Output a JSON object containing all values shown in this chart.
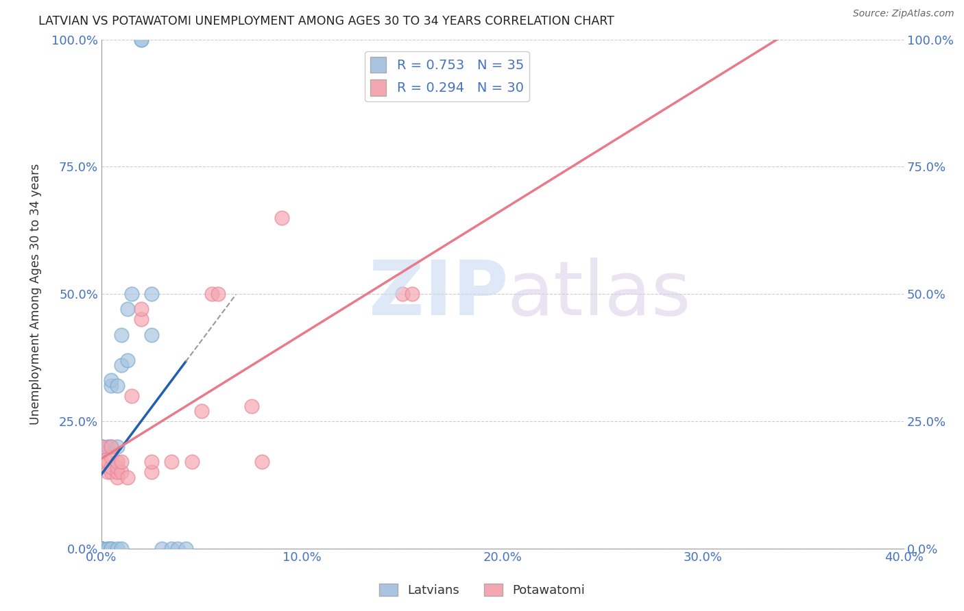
{
  "title": "LATVIAN VS POTAWATOMI UNEMPLOYMENT AMONG AGES 30 TO 34 YEARS CORRELATION CHART",
  "source": "Source: ZipAtlas.com",
  "ylabel": "Unemployment Among Ages 30 to 34 years",
  "x_tick_labels": [
    "0.0%",
    "10.0%",
    "20.0%",
    "30.0%",
    "40.0%"
  ],
  "x_tick_vals": [
    0.0,
    10.0,
    20.0,
    30.0,
    40.0
  ],
  "y_tick_labels": [
    "0.0%",
    "25.0%",
    "50.0%",
    "75.0%",
    "100.0%"
  ],
  "y_tick_vals": [
    0.0,
    25.0,
    50.0,
    75.0,
    100.0
  ],
  "xlim": [
    0.0,
    40.0
  ],
  "ylim": [
    0.0,
    100.0
  ],
  "latvian_color": "#a8c4e0",
  "latvian_edge_color": "#7aaed0",
  "potawatomi_color": "#f4a7b0",
  "potawatomi_edge_color": "#e888a0",
  "latvian_line_color": "#1f5fad",
  "potawatomi_line_color": "#e87a8a",
  "latvian_R": 0.753,
  "latvian_N": 35,
  "potawatomi_R": 0.294,
  "potawatomi_N": 30,
  "legend_label_latvian": "Latvians",
  "legend_label_potawatomi": "Potawatomi",
  "background_color": "#ffffff",
  "latvian_x": [
    0.0,
    0.0,
    0.0,
    0.0,
    0.0,
    0.0,
    0.0,
    0.0,
    0.0,
    0.0,
    0.3,
    0.3,
    0.3,
    0.5,
    0.5,
    0.5,
    0.5,
    0.5,
    0.8,
    0.8,
    0.8,
    1.0,
    1.0,
    1.0,
    1.3,
    1.3,
    1.5,
    2.0,
    2.0,
    2.5,
    2.5,
    3.0,
    3.5,
    3.8,
    4.2
  ],
  "latvian_y": [
    0.0,
    0.0,
    0.0,
    0.0,
    0.0,
    0.0,
    0.0,
    0.0,
    20.0,
    20.0,
    0.0,
    0.0,
    20.0,
    0.0,
    0.0,
    20.0,
    32.0,
    33.0,
    0.0,
    20.0,
    32.0,
    0.0,
    36.0,
    42.0,
    37.0,
    47.0,
    50.0,
    100.0,
    100.0,
    42.0,
    50.0,
    0.0,
    0.0,
    0.0,
    0.0
  ],
  "potawatomi_x": [
    0.0,
    0.0,
    0.3,
    0.3,
    0.5,
    0.5,
    0.5,
    0.5,
    0.8,
    0.8,
    0.8,
    0.8,
    1.0,
    1.0,
    1.3,
    1.5,
    2.0,
    2.0,
    2.5,
    2.5,
    3.5,
    4.5,
    5.0,
    5.5,
    5.8,
    7.5,
    8.0,
    9.0,
    15.0,
    15.5
  ],
  "potawatomi_y": [
    17.0,
    20.0,
    15.0,
    17.0,
    15.0,
    16.0,
    18.0,
    20.0,
    14.0,
    15.0,
    16.0,
    17.0,
    15.0,
    17.0,
    14.0,
    30.0,
    45.0,
    47.0,
    15.0,
    17.0,
    17.0,
    17.0,
    27.0,
    50.0,
    50.0,
    28.0,
    17.0,
    65.0,
    50.0,
    50.0
  ]
}
